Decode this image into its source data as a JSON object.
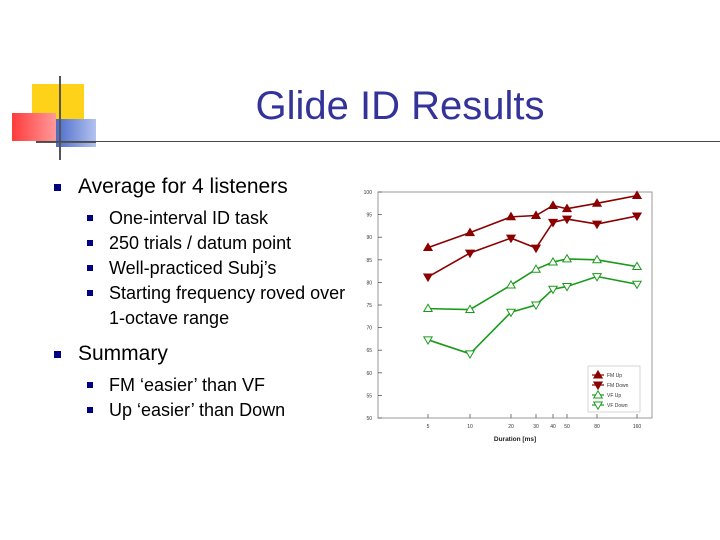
{
  "slide": {
    "title": "Glide ID Results",
    "bullets": [
      {
        "text": "Average for 4 listeners",
        "sub": [
          "One-interval ID task",
          "250 trials / datum point",
          "Well-practiced Subj’s",
          "Starting frequency roved over 1-octave range"
        ]
      },
      {
        "text": "Summary",
        "sub": [
          "FM ‘easier’ than VF",
          "Up ‘easier’ than Down"
        ]
      }
    ]
  },
  "colors": {
    "title": "#333399",
    "bullet": "#000080",
    "fm": "#8b0000",
    "vf": "#1a9a1a"
  },
  "chart_data": {
    "type": "line",
    "xlabel": "Duration [ms]",
    "ylabel": "",
    "x_ticks": [
      "5",
      "10",
      "20",
      "30",
      "40",
      "50",
      "80",
      "160"
    ],
    "ylim": [
      50,
      100
    ],
    "y_ticks": [
      100,
      95,
      90,
      85,
      80,
      75,
      70,
      65,
      60,
      55,
      50
    ],
    "grid": false,
    "legend_position": "bottom-right",
    "series": [
      {
        "name": "FM Up",
        "color": "#8b0000",
        "marker": "triangle-up",
        "values": [
          87.7,
          91,
          94.5,
          94.8,
          97,
          96.3,
          97.5,
          99.2
        ]
      },
      {
        "name": "FM Down",
        "color": "#8b0000",
        "marker": "triangle-down",
        "values": [
          81.2,
          86.5,
          89.8,
          87.6,
          93.3,
          94,
          92.9,
          94.7
        ]
      },
      {
        "name": "VF Up",
        "color": "#1a9a1a",
        "marker": "triangle-up-open",
        "values": [
          74.2,
          74,
          79.4,
          82.9,
          84.5,
          85.2,
          85,
          83.5
        ]
      },
      {
        "name": "VF Down",
        "color": "#1a9a1a",
        "marker": "triangle-down-open",
        "values": [
          67.3,
          64.2,
          73.4,
          75,
          78.5,
          79.1,
          81.3,
          79.6
        ]
      }
    ]
  }
}
